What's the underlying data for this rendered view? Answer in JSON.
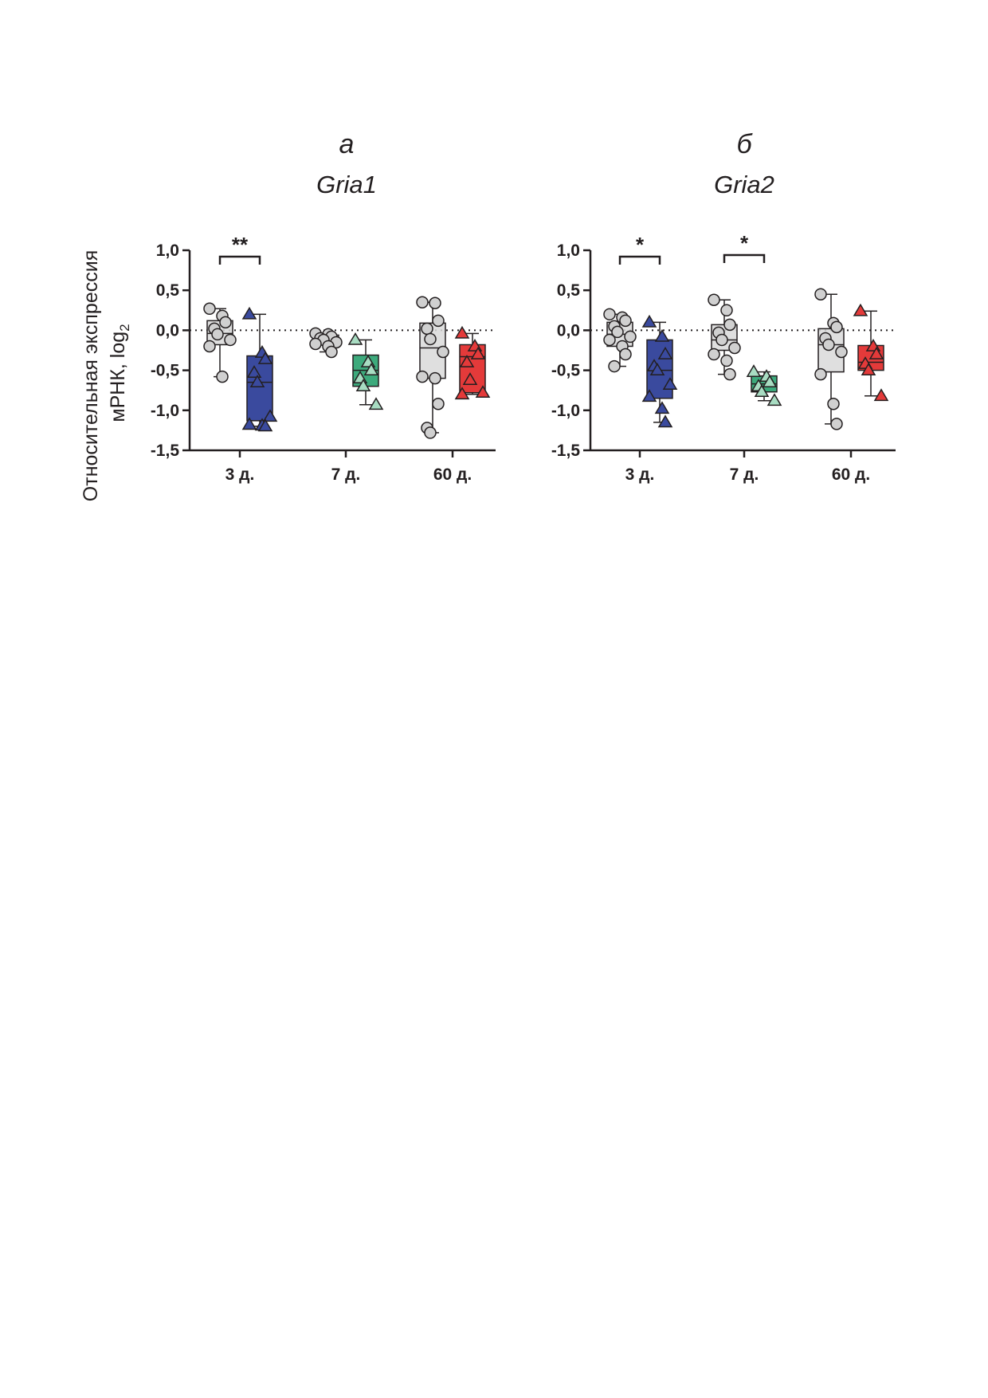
{
  "figure": {
    "y_axis_label_line1": "Относительная экспрессия",
    "y_axis_label_line2": "мРНК, log",
    "y_axis_label_subscript": "2"
  },
  "chart_data": [
    {
      "type": "box",
      "panel_letter": "а",
      "title": "Gria1",
      "categories": [
        "3 д.",
        "7 д.",
        "60 д."
      ],
      "ylim": [
        -1.5,
        1.0
      ],
      "yticks": [
        1.0,
        0.5,
        0.0,
        -0.5,
        -1.0,
        -1.5
      ],
      "ytick_labels": [
        "1,0",
        "0,5",
        "0,0",
        "-0,5",
        "-1,0",
        "-1,5"
      ],
      "reference_line": 0.0,
      "grid": false,
      "groups": [
        {
          "category": "3 д.",
          "series": "control",
          "marker": "circle",
          "color": "#d9d9d9",
          "box": {
            "min": -0.58,
            "q1": -0.18,
            "median": -0.04,
            "q3": 0.12,
            "max": 0.27
          },
          "points": [
            0.27,
            0.18,
            0.1,
            0.02,
            -0.05,
            -0.12,
            -0.2,
            -0.58
          ]
        },
        {
          "category": "3 д.",
          "series": "treated",
          "marker": "triangle",
          "color": "#3a4a9e",
          "box": {
            "min": -1.2,
            "q1": -1.13,
            "median": -0.65,
            "q3": -0.32,
            "max": 0.2
          },
          "points": [
            0.2,
            -0.28,
            -0.36,
            -0.53,
            -0.65,
            -1.08,
            -1.18,
            -1.19,
            -1.2
          ]
        },
        {
          "category": "7 д.",
          "series": "control",
          "marker": "circle",
          "color": "#d9d9d9",
          "box": {
            "min": -0.27,
            "q1": -0.18,
            "median": -0.12,
            "q3": -0.06,
            "max": -0.04
          },
          "points": [
            -0.04,
            -0.05,
            -0.08,
            -0.1,
            -0.12,
            -0.15,
            -0.17,
            -0.2,
            -0.27
          ]
        },
        {
          "category": "7 д.",
          "series": "treated",
          "marker": "triangle",
          "color": "#3daa7c",
          "box": {
            "min": -0.93,
            "q1": -0.7,
            "median": -0.5,
            "q3": -0.31,
            "max": -0.12
          },
          "points": [
            -0.12,
            -0.4,
            -0.5,
            -0.6,
            -0.7,
            -0.93
          ]
        },
        {
          "category": "60 д.",
          "series": "control",
          "marker": "circle",
          "color": "#d9d9d9",
          "box": {
            "min": -1.28,
            "q1": -0.6,
            "median": -0.22,
            "q3": 0.09,
            "max": 0.35
          },
          "points": [
            0.35,
            0.34,
            0.12,
            0.02,
            -0.11,
            -0.27,
            -0.58,
            -0.6,
            -0.92,
            -1.22,
            -1.28
          ]
        },
        {
          "category": "60 д.",
          "series": "treated",
          "marker": "triangle",
          "color": "#e43a3a",
          "box": {
            "min": -0.8,
            "q1": -0.78,
            "median": -0.33,
            "q3": -0.18,
            "max": -0.04
          },
          "points": [
            -0.04,
            -0.2,
            -0.3,
            -0.4,
            -0.62,
            -0.78,
            -0.8
          ]
        }
      ],
      "significance": [
        {
          "category": "3 д.",
          "label": "**",
          "y": 0.92
        }
      ]
    },
    {
      "type": "box",
      "panel_letter": "б",
      "title": "Gria2",
      "categories": [
        "3 д.",
        "7 д.",
        "60 д."
      ],
      "ylim": [
        -1.5,
        1.0
      ],
      "yticks": [
        1.0,
        0.5,
        0.0,
        -0.5,
        -1.0,
        -1.5
      ],
      "ytick_labels": [
        "1,0",
        "0,5",
        "0,0",
        "-0,5",
        "-1,0",
        "-1,5"
      ],
      "reference_line": 0.0,
      "grid": false,
      "groups": [
        {
          "category": "3 д.",
          "series": "control",
          "marker": "circle",
          "color": "#d9d9d9",
          "box": {
            "min": -0.45,
            "q1": -0.2,
            "median": -0.05,
            "q3": 0.1,
            "max": 0.2
          },
          "points": [
            0.2,
            0.16,
            0.12,
            0.05,
            -0.02,
            -0.08,
            -0.12,
            -0.2,
            -0.3,
            -0.45
          ]
        },
        {
          "category": "3 д.",
          "series": "treated",
          "marker": "triangle",
          "color": "#3a4a9e",
          "box": {
            "min": -1.15,
            "q1": -0.85,
            "median": -0.5,
            "q3": -0.12,
            "max": 0.1
          },
          "points": [
            0.1,
            -0.08,
            -0.3,
            -0.45,
            -0.5,
            -0.68,
            -0.83,
            -0.98,
            -1.15
          ]
        },
        {
          "category": "7 д.",
          "series": "control",
          "marker": "circle",
          "color": "#d9d9d9",
          "box": {
            "min": -0.55,
            "q1": -0.25,
            "median": -0.12,
            "q3": 0.07,
            "max": 0.38
          },
          "points": [
            0.38,
            0.25,
            0.07,
            -0.03,
            -0.12,
            -0.22,
            -0.3,
            -0.38,
            -0.55
          ]
        },
        {
          "category": "7 д.",
          "series": "treated",
          "marker": "triangle",
          "color": "#3daa7c",
          "box": {
            "min": -0.88,
            "q1": -0.77,
            "median": -0.67,
            "q3": -0.57,
            "max": -0.52
          },
          "points": [
            -0.52,
            -0.58,
            -0.65,
            -0.7,
            -0.77,
            -0.88
          ]
        },
        {
          "category": "60 д.",
          "series": "control",
          "marker": "circle",
          "color": "#d9d9d9",
          "box": {
            "min": -1.17,
            "q1": -0.52,
            "median": -0.18,
            "q3": 0.02,
            "max": 0.45
          },
          "points": [
            0.45,
            0.09,
            0.04,
            -0.1,
            -0.18,
            -0.27,
            -0.55,
            -0.92,
            -1.17
          ]
        },
        {
          "category": "60 д.",
          "series": "treated",
          "marker": "triangle",
          "color": "#e43a3a",
          "box": {
            "min": -0.82,
            "q1": -0.5,
            "median": -0.4,
            "q3": -0.19,
            "max": 0.24
          },
          "points": [
            0.24,
            -0.2,
            -0.3,
            -0.42,
            -0.5,
            -0.82
          ]
        }
      ],
      "significance": [
        {
          "category": "3 д.",
          "label": "*",
          "y": 0.92
        },
        {
          "category": "7 д.",
          "label": "*",
          "y": 0.94
        }
      ]
    }
  ]
}
